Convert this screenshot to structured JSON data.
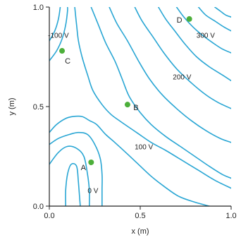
{
  "chart_data": {
    "type": "contour",
    "xlabel": "x (m)",
    "ylabel": "y (m)",
    "xlim": [
      0,
      1
    ],
    "ylim": [
      0,
      1
    ],
    "x_ticks": [
      "0.0",
      "0.5",
      "1.0"
    ],
    "y_ticks": [
      "0.0",
      "0.5",
      "1.0"
    ],
    "line_color": "#29a6d4",
    "point_color": "#4caf3a",
    "contours": [
      {
        "label": "-100 V",
        "points": [
          [
            0.0,
            0.73
          ],
          [
            0.04,
            0.78
          ],
          [
            0.07,
            0.84
          ],
          [
            0.09,
            0.91
          ],
          [
            0.1,
            0.98
          ],
          [
            0.1,
            1.0
          ]
        ]
      },
      {
        "label": "",
        "points": [
          [
            0.0,
            0.83
          ],
          [
            0.03,
            0.88
          ],
          [
            0.05,
            0.94
          ],
          [
            0.06,
            1.0
          ]
        ]
      },
      {
        "label": "",
        "points": [
          [
            0.14,
            1.0
          ],
          [
            0.15,
            0.91
          ],
          [
            0.16,
            0.83
          ],
          [
            0.18,
            0.75
          ],
          [
            0.21,
            0.66
          ],
          [
            0.24,
            0.58
          ],
          [
            0.29,
            0.51
          ],
          [
            0.34,
            0.46
          ],
          [
            0.4,
            0.42
          ],
          [
            0.48,
            0.37
          ],
          [
            0.56,
            0.32
          ],
          [
            0.64,
            0.28
          ],
          [
            0.73,
            0.23
          ],
          [
            0.82,
            0.18
          ],
          [
            0.91,
            0.13
          ],
          [
            1.0,
            0.09
          ]
        ]
      },
      {
        "label": "",
        "points": [
          [
            0.0,
            0.37
          ],
          [
            0.04,
            0.41
          ],
          [
            0.09,
            0.44
          ],
          [
            0.13,
            0.45
          ],
          [
            0.18,
            0.45
          ],
          [
            0.22,
            0.43
          ],
          [
            0.26,
            0.41
          ],
          [
            0.31,
            0.36
          ],
          [
            0.36,
            0.32
          ],
          [
            0.42,
            0.27
          ],
          [
            0.49,
            0.21
          ],
          [
            0.56,
            0.15
          ],
          [
            0.63,
            0.1
          ],
          [
            0.71,
            0.05
          ],
          [
            0.8,
            0.02
          ],
          [
            0.88,
            0.0
          ]
        ]
      },
      {
        "label": "",
        "points": [
          [
            0.0,
            0.31
          ],
          [
            0.05,
            0.34
          ],
          [
            0.11,
            0.36
          ],
          [
            0.16,
            0.37
          ],
          [
            0.21,
            0.36
          ],
          [
            0.25,
            0.31
          ],
          [
            0.28,
            0.24
          ],
          [
            0.29,
            0.16
          ],
          [
            0.29,
            0.08
          ],
          [
            0.29,
            0.0
          ]
        ]
      },
      {
        "label": "0 V",
        "points": [
          [
            0.0,
            0.21
          ],
          [
            0.05,
            0.27
          ],
          [
            0.1,
            0.3
          ],
          [
            0.15,
            0.29
          ],
          [
            0.19,
            0.25
          ],
          [
            0.21,
            0.16
          ],
          [
            0.22,
            0.08
          ],
          [
            0.22,
            0.0
          ]
        ]
      },
      {
        "label": "",
        "points": [
          [
            0.09,
            0.0
          ],
          [
            0.09,
            0.08
          ],
          [
            0.1,
            0.16
          ],
          [
            0.12,
            0.21
          ],
          [
            0.15,
            0.2
          ],
          [
            0.16,
            0.12
          ],
          [
            0.17,
            0.0
          ]
        ]
      },
      {
        "label": "100 V",
        "points": [
          [
            0.23,
            1.0
          ],
          [
            0.27,
            0.91
          ],
          [
            0.31,
            0.82
          ],
          [
            0.36,
            0.73
          ],
          [
            0.4,
            0.64
          ],
          [
            0.44,
            0.55
          ],
          [
            0.5,
            0.47
          ],
          [
            0.56,
            0.41
          ],
          [
            0.64,
            0.35
          ],
          [
            0.72,
            0.3
          ],
          [
            0.8,
            0.25
          ],
          [
            0.88,
            0.2
          ],
          [
            0.95,
            0.16
          ],
          [
            1.0,
            0.14
          ]
        ]
      },
      {
        "label": "",
        "points": [
          [
            0.33,
            1.0
          ],
          [
            0.37,
            0.92
          ],
          [
            0.43,
            0.83
          ],
          [
            0.49,
            0.73
          ],
          [
            0.55,
            0.64
          ],
          [
            0.62,
            0.56
          ],
          [
            0.7,
            0.49
          ],
          [
            0.78,
            0.43
          ],
          [
            0.86,
            0.38
          ],
          [
            0.94,
            0.34
          ],
          [
            1.0,
            0.32
          ]
        ]
      },
      {
        "label": "200 V",
        "points": [
          [
            0.47,
            1.0
          ],
          [
            0.51,
            0.93
          ],
          [
            0.57,
            0.85
          ],
          [
            0.63,
            0.77
          ],
          [
            0.7,
            0.69
          ],
          [
            0.78,
            0.62
          ],
          [
            0.86,
            0.56
          ],
          [
            0.93,
            0.52
          ],
          [
            1.0,
            0.49
          ]
        ]
      },
      {
        "label": "",
        "points": [
          [
            0.6,
            1.0
          ],
          [
            0.64,
            0.94
          ],
          [
            0.69,
            0.88
          ],
          [
            0.75,
            0.81
          ],
          [
            0.81,
            0.75
          ],
          [
            0.88,
            0.7
          ],
          [
            0.95,
            0.66
          ],
          [
            1.0,
            0.63
          ]
        ]
      },
      {
        "label": "300 V",
        "points": [
          [
            0.7,
            1.0
          ],
          [
            0.74,
            0.95
          ],
          [
            0.79,
            0.9
          ],
          [
            0.84,
            0.86
          ],
          [
            0.9,
            0.82
          ],
          [
            0.95,
            0.79
          ],
          [
            1.0,
            0.77
          ]
        ]
      },
      {
        "label": "",
        "points": [
          [
            0.82,
            1.0
          ],
          [
            0.86,
            0.96
          ],
          [
            0.91,
            0.93
          ],
          [
            0.96,
            0.9
          ],
          [
            1.0,
            0.88
          ]
        ]
      },
      {
        "label": "",
        "points": [
          [
            0.91,
            1.0
          ],
          [
            0.94,
            0.98
          ],
          [
            0.97,
            0.96
          ],
          [
            1.0,
            0.95
          ]
        ]
      }
    ],
    "points": [
      {
        "label": "A",
        "x": 0.23,
        "y": 0.22
      },
      {
        "label": "B",
        "x": 0.43,
        "y": 0.51
      },
      {
        "label": "C",
        "x": 0.07,
        "y": 0.78
      },
      {
        "label": "D",
        "x": 0.77,
        "y": 0.94
      }
    ],
    "contour_labels": [
      {
        "text": "-100 V",
        "x": 0.05,
        "y": 0.86
      },
      {
        "text": "0 V",
        "x": 0.24,
        "y": 0.08
      },
      {
        "text": "100 V",
        "x": 0.52,
        "y": 0.3
      },
      {
        "text": "200 V",
        "x": 0.73,
        "y": 0.65
      },
      {
        "text": "300 V",
        "x": 0.86,
        "y": 0.86
      }
    ]
  }
}
